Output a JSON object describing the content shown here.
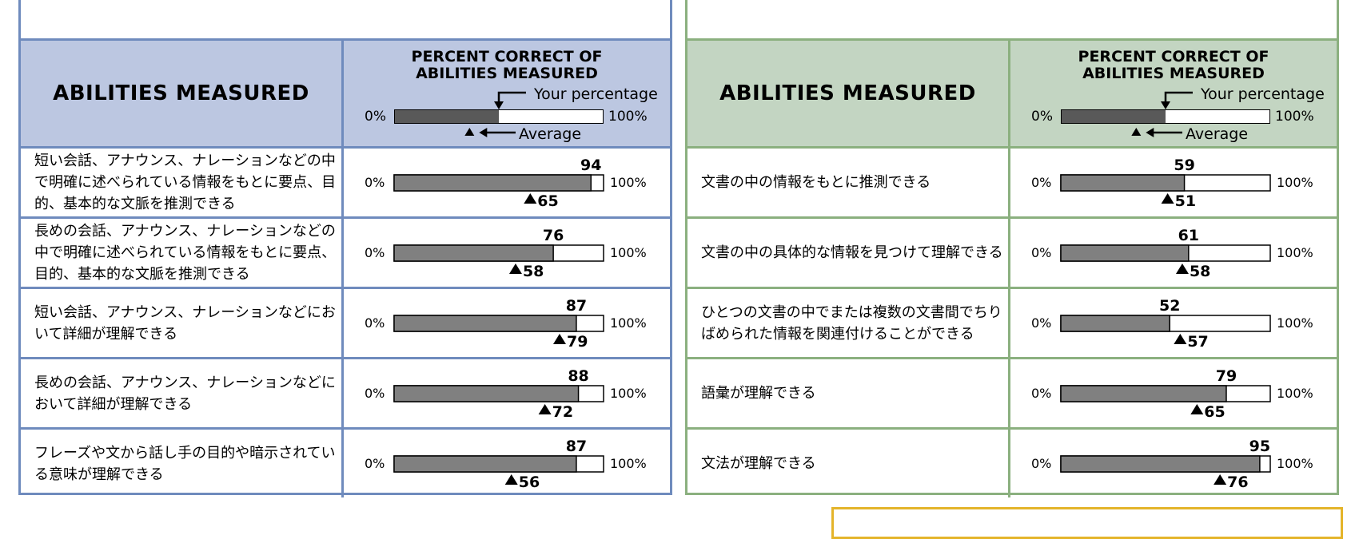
{
  "scale_labels": {
    "min": "0%",
    "max": "100%"
  },
  "panels": [
    {
      "id": "listening",
      "accent": "#6f8bbd",
      "header_bg": "#bcc7e1",
      "header": {
        "abilities_title": "ABILITIES MEASURED",
        "percent_title_line1": "PERCENT CORRECT OF",
        "percent_title_line2": "ABILITIES MEASURED",
        "your_percentage": "Your percentage",
        "average": "Average",
        "legend_fill_percent": 50,
        "legend_avg_percent": 36
      },
      "rows": [
        {
          "label": "短い会話、アナウンス、ナレーションなどの中で明確に述べられている情報をもとに要点、目的、基本的な文脈を推測できる",
          "yours": 94,
          "average": 65
        },
        {
          "label": "長めの会話、アナウンス、ナレーションなどの中で明確に述べられている情報をもとに要点、目的、基本的な文脈を推測できる",
          "yours": 76,
          "average": 58
        },
        {
          "label": "短い会話、アナウンス、ナレーションなどにおいて詳細が理解できる",
          "yours": 87,
          "average": 79
        },
        {
          "label": "長めの会話、アナウンス、ナレーションなどにおいて詳細が理解できる",
          "yours": 88,
          "average": 72
        },
        {
          "label": "フレーズや文から話し手の目的や暗示されている意味が理解できる",
          "yours": 87,
          "average": 56
        }
      ]
    },
    {
      "id": "reading",
      "accent": "#8bb07f",
      "header_bg": "#c3d5c2",
      "header": {
        "abilities_title": "ABILITIES MEASURED",
        "percent_title_line1": "PERCENT CORRECT OF",
        "percent_title_line2": "ABILITIES MEASURED",
        "your_percentage": "Your percentage",
        "average": "Average",
        "legend_fill_percent": 50,
        "legend_avg_percent": 36
      },
      "rows": [
        {
          "label": "文書の中の情報をもとに推測できる",
          "yours": 59,
          "average": 51
        },
        {
          "label": "文書の中の具体的な情報を見つけて理解できる",
          "yours": 61,
          "average": 58
        },
        {
          "label": "ひとつの文書の中でまたは複数の文書間でちりばめられた情報を関連付けることができる",
          "yours": 52,
          "average": 57
        },
        {
          "label": "語彙が理解できる",
          "yours": 79,
          "average": 65
        },
        {
          "label": "文法が理解できる",
          "yours": 95,
          "average": 76
        }
      ]
    }
  ],
  "colors": {
    "bar_fill": "#808080",
    "legend_fill": "#595959",
    "bottom_box": "#e4b42a"
  }
}
